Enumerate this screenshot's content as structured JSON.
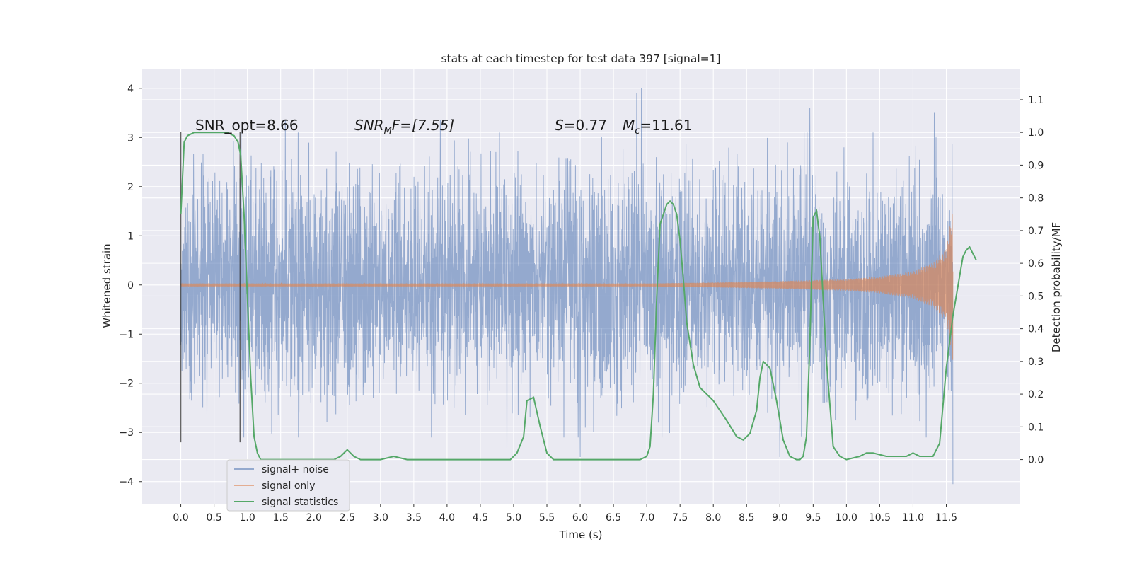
{
  "chart_data": {
    "type": "line",
    "title": "stats at each timestep for test data 397 [signal=1]",
    "xlabel": "Time (s)",
    "ylabel": "Whitened strain",
    "y2label": "Detection probability/MF",
    "xlim": [
      -0.58,
      12.6
    ],
    "ylim": [
      -4.45,
      4.4
    ],
    "y2lim": [
      -0.135,
      1.195
    ],
    "grid": true,
    "legend_position": "lower-left",
    "x_ticks": [
      "0.0",
      "0.5",
      "1.0",
      "1.5",
      "2.0",
      "2.5",
      "3.0",
      "3.5",
      "4.0",
      "4.5",
      "5.0",
      "5.5",
      "6.0",
      "6.5",
      "7.0",
      "7.5",
      "8.0",
      "8.5",
      "9.0",
      "9.5",
      "10.0",
      "10.5",
      "11.0",
      "11.5"
    ],
    "y_ticks": [
      "4",
      "3",
      "2",
      "1",
      "0",
      "−1",
      "−2",
      "−3",
      "−4"
    ],
    "y2_ticks": [
      "1.1",
      "1.0",
      "0.9",
      "0.8",
      "0.7",
      "0.6",
      "0.5",
      "0.4",
      "0.3",
      "0.2",
      "0.1",
      "0.0"
    ],
    "annotations": {
      "snr_opt": "SNR_opt=8.66",
      "snr_mf_main": "SNR",
      "snr_mf_sub": "M",
      "snr_mf_rest": "F=[7.55]",
      "s_main": "S",
      "s_rest": "=0.77",
      "mc_main": "M",
      "mc_sub": "c",
      "mc_rest": "=11.61"
    },
    "markers": {
      "window": [
        0.0,
        0.89
      ],
      "range": [
        -3.2,
        3.12
      ]
    },
    "series": [
      {
        "name": "signal+ noise",
        "color": "#4c72b0",
        "t_end": 11.6,
        "typical_amplitude": 1.8,
        "peak_points": [
          {
            "x": 1.57,
            "y": 3.35
          },
          {
            "x": 3.9,
            "y": 3.35
          },
          {
            "x": 6.85,
            "y": 3.9
          },
          {
            "x": 6.92,
            "y": 4.0
          },
          {
            "x": 9.45,
            "y": 3.6
          },
          {
            "x": 11.32,
            "y": 3.5
          },
          {
            "x": 4.9,
            "y": -3.35
          },
          {
            "x": 6.0,
            "y": -3.5
          },
          {
            "x": 9.0,
            "y": -3.5
          },
          {
            "x": 11.6,
            "y": -4.05
          }
        ]
      },
      {
        "name": "signal only",
        "color": "#dd8452",
        "t_end": 11.6,
        "envelope": [
          [
            0.0,
            0.03
          ],
          [
            7.0,
            0.03
          ],
          [
            8.0,
            0.05
          ],
          [
            9.0,
            0.08
          ],
          [
            10.0,
            0.12
          ],
          [
            10.5,
            0.17
          ],
          [
            11.0,
            0.28
          ],
          [
            11.3,
            0.45
          ],
          [
            11.5,
            0.75
          ],
          [
            11.6,
            1.55
          ]
        ]
      },
      {
        "name": "signal statistics",
        "color": "#55a868",
        "x": [
          0.0,
          0.05,
          0.1,
          0.2,
          0.3,
          0.5,
          0.7,
          0.8,
          0.86,
          0.9,
          0.95,
          1.0,
          1.05,
          1.1,
          1.15,
          1.2,
          1.3,
          1.5,
          2.0,
          2.3,
          2.4,
          2.5,
          2.6,
          2.7,
          2.8,
          3.0,
          3.2,
          3.4,
          3.6,
          4.0,
          4.5,
          4.8,
          4.95,
          5.05,
          5.15,
          5.2,
          5.3,
          5.4,
          5.5,
          5.6,
          5.8,
          6.0,
          6.5,
          6.9,
          7.0,
          7.05,
          7.1,
          7.15,
          7.2,
          7.3,
          7.35,
          7.4,
          7.45,
          7.5,
          7.55,
          7.6,
          7.7,
          7.8,
          8.0,
          8.2,
          8.35,
          8.45,
          8.55,
          8.65,
          8.7,
          8.75,
          8.85,
          8.95,
          9.05,
          9.15,
          9.25,
          9.3,
          9.35,
          9.4,
          9.45,
          9.5,
          9.55,
          9.6,
          9.7,
          9.8,
          9.9,
          10.0,
          10.2,
          10.3,
          10.4,
          10.6,
          10.9,
          11.0,
          11.1,
          11.2,
          11.3,
          11.4,
          11.5,
          11.6,
          11.7,
          11.75,
          11.8,
          11.85,
          11.9,
          11.95
        ],
        "y": [
          0.75,
          0.97,
          0.99,
          1.0,
          1.0,
          1.0,
          1.0,
          0.99,
          0.97,
          0.93,
          0.75,
          0.5,
          0.25,
          0.07,
          0.02,
          0.0,
          0.0,
          0.0,
          0.0,
          0.0,
          0.01,
          0.03,
          0.01,
          0.0,
          0.0,
          0.0,
          0.01,
          0.0,
          0.0,
          0.0,
          0.0,
          0.0,
          0.0,
          0.02,
          0.07,
          0.18,
          0.19,
          0.1,
          0.02,
          0.0,
          0.0,
          0.0,
          0.0,
          0.0,
          0.01,
          0.04,
          0.2,
          0.5,
          0.72,
          0.78,
          0.79,
          0.78,
          0.75,
          0.67,
          0.55,
          0.42,
          0.29,
          0.22,
          0.18,
          0.12,
          0.07,
          0.06,
          0.08,
          0.15,
          0.25,
          0.3,
          0.28,
          0.18,
          0.06,
          0.01,
          0.0,
          0.0,
          0.01,
          0.07,
          0.35,
          0.74,
          0.76,
          0.68,
          0.3,
          0.04,
          0.01,
          0.0,
          0.01,
          0.02,
          0.02,
          0.01,
          0.01,
          0.02,
          0.01,
          0.01,
          0.01,
          0.05,
          0.28,
          0.44,
          0.56,
          0.62,
          0.64,
          0.65,
          0.63,
          0.61
        ]
      }
    ]
  }
}
